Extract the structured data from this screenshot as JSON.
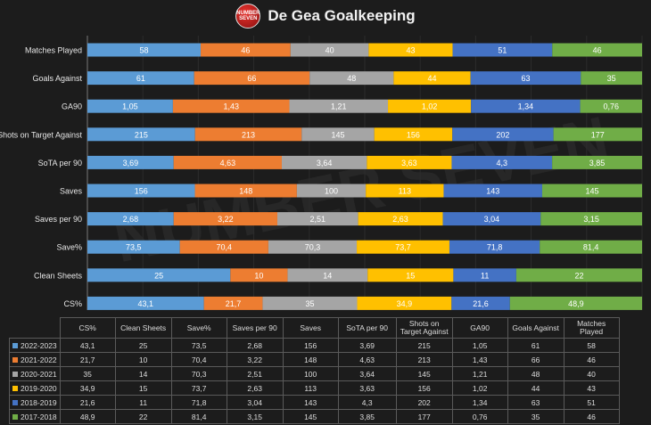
{
  "logo_text": "NUMBER SEVEN",
  "chart_data": {
    "type": "bar",
    "stacked": "percent",
    "orientation": "horizontal",
    "title": "De Gea Goalkeeping",
    "categories": [
      "Matches Played",
      "Goals Against",
      "GA90",
      "Shots on Target Against",
      "SoTA per 90",
      "Saves",
      "Saves per 90",
      "Save%",
      "Clean Sheets",
      "CS%"
    ],
    "table_columns": [
      "CS%",
      "Clean Sheets",
      "Save%",
      "Saves per 90",
      "Saves",
      "SoTA per 90",
      "Shots on Target Against",
      "GA90",
      "Goals Against",
      "Matches Played"
    ],
    "series": [
      {
        "name": "2022-2023",
        "color": "#5b9bd5",
        "labels": [
          "58",
          "61",
          "1,05",
          "215",
          "3,69",
          "156",
          "2,68",
          "73,5",
          "25",
          "43,1"
        ],
        "values": [
          58,
          61,
          1.05,
          215,
          3.69,
          156,
          2.68,
          73.5,
          25,
          43.1
        ]
      },
      {
        "name": "2021-2022",
        "color": "#ed7d31",
        "labels": [
          "46",
          "66",
          "1,43",
          "213",
          "4,63",
          "148",
          "3,22",
          "70,4",
          "10",
          "21,7"
        ],
        "values": [
          46,
          66,
          1.43,
          213,
          4.63,
          148,
          3.22,
          70.4,
          10,
          21.7
        ]
      },
      {
        "name": "2020-2021",
        "color": "#a5a5a5",
        "labels": [
          "40",
          "48",
          "1,21",
          "145",
          "3,64",
          "100",
          "2,51",
          "70,3",
          "14",
          "35"
        ],
        "values": [
          40,
          48,
          1.21,
          145,
          3.64,
          100,
          2.51,
          70.3,
          14,
          35
        ]
      },
      {
        "name": "2019-2020",
        "color": "#ffc000",
        "labels": [
          "43",
          "44",
          "1,02",
          "156",
          "3,63",
          "113",
          "2,63",
          "73,7",
          "15",
          "34,9"
        ],
        "values": [
          43,
          44,
          1.02,
          156,
          3.63,
          113,
          2.63,
          73.7,
          15,
          34.9
        ]
      },
      {
        "name": "2018-2019",
        "color": "#4472c4",
        "labels": [
          "51",
          "63",
          "1,34",
          "202",
          "4,3",
          "143",
          "3,04",
          "71,8",
          "11",
          "21,6"
        ],
        "values": [
          51,
          63,
          1.34,
          202,
          4.3,
          143,
          3.04,
          71.8,
          11,
          21.6
        ]
      },
      {
        "name": "2017-2018",
        "color": "#70ad47",
        "labels": [
          "46",
          "35",
          "0,76",
          "177",
          "3,85",
          "145",
          "3,15",
          "81,4",
          "22",
          "48,9"
        ],
        "values": [
          46,
          35,
          0.76,
          177,
          3.85,
          145,
          3.15,
          81.4,
          22,
          48.9
        ]
      }
    ]
  }
}
